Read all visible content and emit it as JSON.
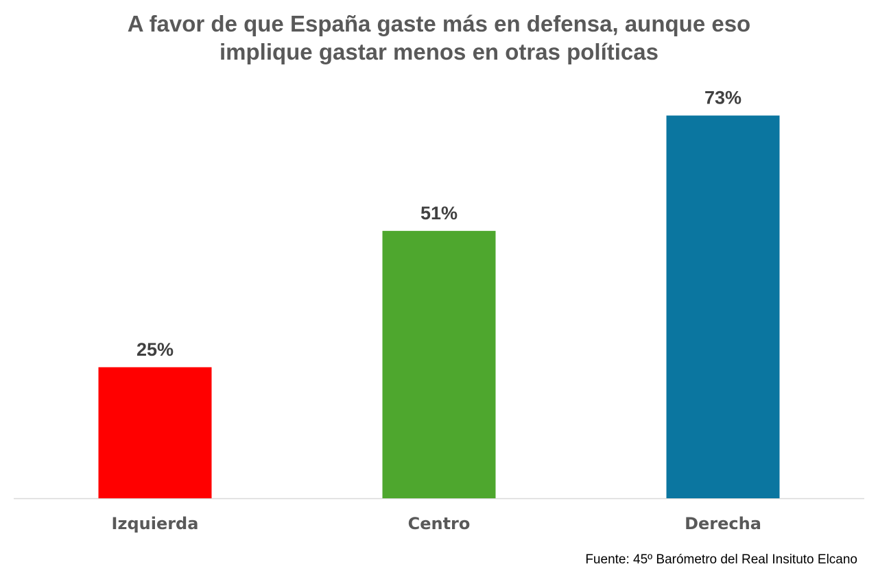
{
  "chart_data": {
    "type": "bar",
    "title": [
      "A favor de que España gaste más en defensa, aunque eso",
      "implique gastar menos en otras políticas"
    ],
    "categories": [
      "Izquierda",
      "Centro",
      "Derecha"
    ],
    "values": [
      25,
      51,
      73
    ],
    "value_labels": [
      "25%",
      "51%",
      "73%"
    ],
    "colors": [
      "#ff0000",
      "#4ea72e",
      "#0b76a0"
    ],
    "ylim": [
      0,
      100
    ],
    "grid": false,
    "legend": "none",
    "xlabel": "",
    "ylabel": ""
  },
  "source": "Fuente: 45º Barómetro del Real Insituto Elcano"
}
